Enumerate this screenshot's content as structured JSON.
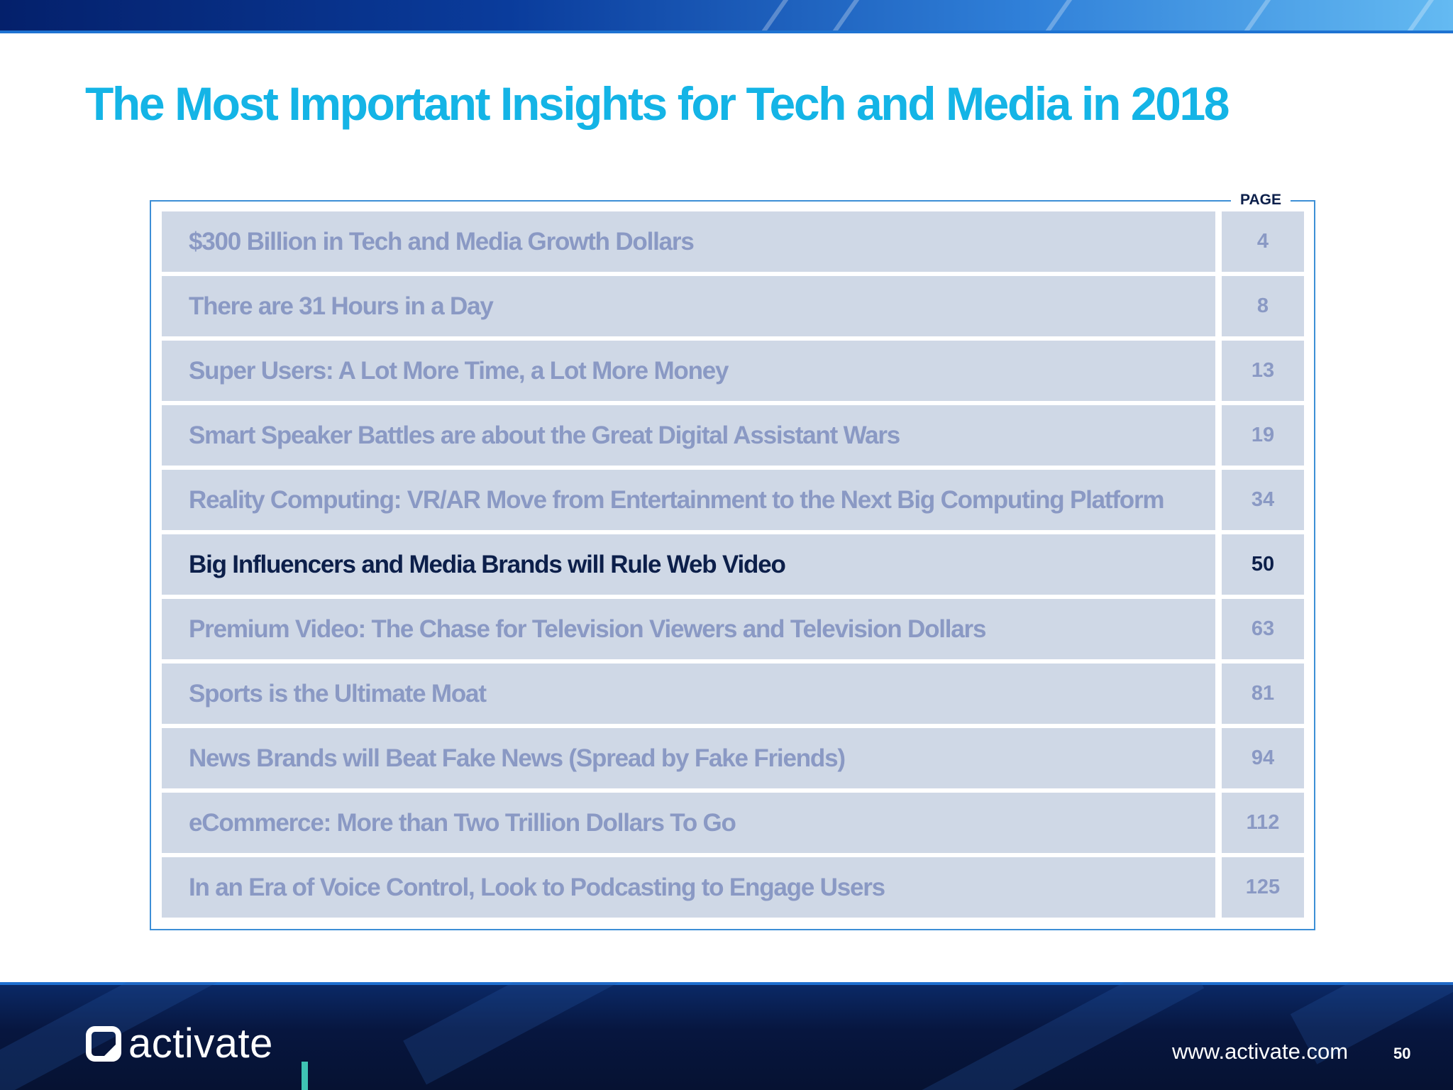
{
  "title": "The Most Important Insights for Tech and Media in 2018",
  "toc": {
    "page_header": "PAGE",
    "items": [
      {
        "title": "$300 Billion in Tech and Media Growth Dollars",
        "page": "4"
      },
      {
        "title": "There are 31 Hours in a Day",
        "page": "8"
      },
      {
        "title": "Super Users: A Lot More Time, a Lot More Money",
        "page": "13"
      },
      {
        "title": "Smart Speaker Battles are about the Great Digital Assistant Wars",
        "page": "19"
      },
      {
        "title": "Reality Computing: VR/AR Move from Entertainment to the Next Big Computing Platform",
        "page": "34"
      },
      {
        "title": "Big Influencers and Media Brands will Rule Web Video",
        "page": "50"
      },
      {
        "title": "Premium Video: The Chase for Television Viewers and Television Dollars",
        "page": "63"
      },
      {
        "title": "Sports is the Ultimate Moat",
        "page": "81"
      },
      {
        "title": "News Brands will Beat Fake News (Spread by Fake Friends)",
        "page": "94"
      },
      {
        "title": "eCommerce: More than Two Trillion Dollars To Go",
        "page": "112"
      },
      {
        "title": "In an Era of Voice Control, Look to Podcasting to Engage Users",
        "page": "125"
      }
    ],
    "active_index": 5
  },
  "footer": {
    "logo_text": "activate",
    "logo_icon": "activate-logo-icon",
    "url": "www.activate.com",
    "page_number": "50"
  },
  "colors": {
    "title": "#14b4e6",
    "active_text": "#0c1f4a",
    "inactive_text": "#8a99c4",
    "row_background": "#cfd8e6",
    "frame_border": "#3d8fd6"
  }
}
